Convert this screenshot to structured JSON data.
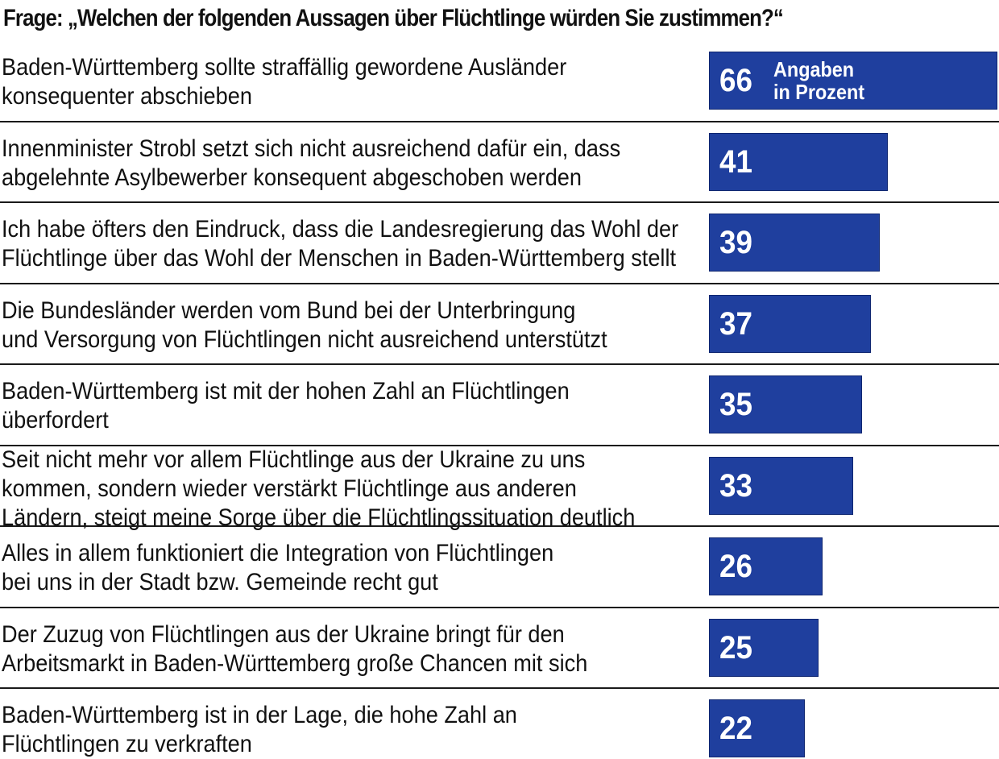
{
  "chart_data": {
    "type": "bar",
    "orientation": "horizontal",
    "title": "Frage: „Welchen der folgenden Aussagen über Flüchtlinge würden Sie zustimmen?“",
    "unit_note": "Angaben\nin Prozent",
    "categories": [
      "Baden-Württemberg sollte straffällig gewordene Ausländer\nkonsequenter abschieben",
      "Innenminister Strobl setzt sich nicht ausreichend dafür ein, dass\nabgelehnte Asylbewerber konsequent abgeschoben werden",
      "Ich habe öfters den Eindruck, dass die Landesregierung das Wohl der\nFlüchtlinge über das Wohl der Menschen in Baden-Württemberg stellt",
      "Die Bundesländer werden vom Bund bei der Unterbringung\nund Versorgung von Flüchtlingen nicht ausreichend unterstützt",
      "Baden-Württemberg ist mit der hohen Zahl an Flüchtlingen\nüberfordert",
      "Seit nicht mehr vor allem Flüchtlinge aus der Ukraine zu uns\nkommen, sondern wieder verstärkt Flüchtlinge aus anderen\nLändern, steigt meine Sorge über die Flüchtlingssituation deutlich",
      "Alles in allem funktioniert die Integration von Flüchtlingen\nbei uns in der Stadt bzw. Gemeinde recht gut",
      "Der Zuzug von Flüchtlingen aus der Ukraine bringt für den\nArbeitsmarkt in Baden-Württemberg große Chancen mit sich",
      "Baden-Württemberg ist in der Lage, die hohe Zahl an\nFlüchtlingen zu verkraften"
    ],
    "values": [
      66,
      41,
      39,
      37,
      35,
      33,
      26,
      25,
      22
    ],
    "value_labels": [
      "66",
      "41",
      "39",
      "37",
      "35",
      "33",
      "26",
      "25",
      "22"
    ],
    "xlim": [
      0,
      66
    ],
    "grid": false,
    "legend": "none",
    "colors": {
      "bar": "#1f3f9e",
      "bar_border": "#0f2670",
      "value_text": "#ffffff",
      "text": "#111111",
      "divider": "#1a1a1a"
    }
  }
}
